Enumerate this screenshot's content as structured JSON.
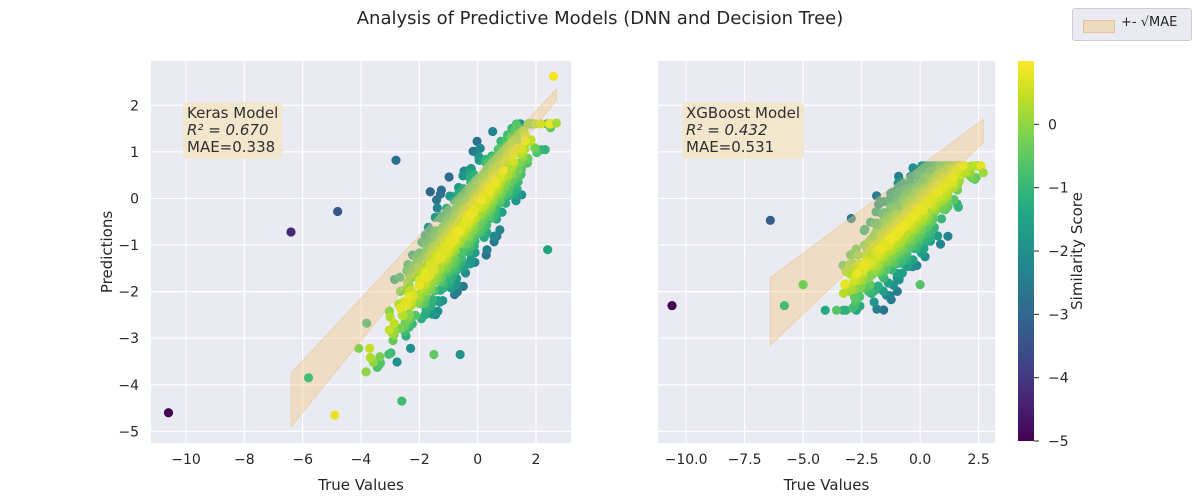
{
  "figure": {
    "title": "Analysis of Predictive Models (DNN and Decision Tree)",
    "legend_label": "+- √MAE",
    "colorbar_label": "Similarity Score",
    "colorbar_ticks": [
      0,
      -1,
      -2,
      -3,
      -4,
      -5
    ],
    "colormap": "viridis",
    "band_color": "#f5c882"
  },
  "panels": [
    {
      "model_label": "Keras Model",
      "r2_text": "R² = 0.670",
      "mae_text": "MAE=0.338",
      "xlabel": "True Values",
      "ylabel": "Predictions"
    },
    {
      "model_label": "XGBoost Model",
      "r2_text": "R² = 0.432",
      "mae_text": "MAE=0.531",
      "xlabel": "True Values",
      "ylabel": ""
    }
  ],
  "chart_data": [
    {
      "type": "scatter",
      "title": "Keras Model",
      "xlabel": "True Values",
      "ylabel": "Predictions",
      "xlim": [
        -11.2,
        3.2
      ],
      "ylim": [
        -5.25,
        2.95
      ],
      "xticks": [
        -10,
        -8,
        -6,
        -4,
        -2,
        0,
        2
      ],
      "yticks": [
        2,
        1,
        0,
        -1,
        -2,
        -3,
        -4,
        -5
      ],
      "grid": true,
      "band": {
        "x": [
          -6.4,
          2.7
        ],
        "lower": [
          -4.9,
          2.1
        ],
        "upper": [
          -3.75,
          2.35
        ],
        "label": "+- √MAE"
      },
      "outliers": [
        {
          "x": -10.6,
          "y": -4.6,
          "s": -5.0
        },
        {
          "x": -6.4,
          "y": -0.72,
          "s": -4.3
        },
        {
          "x": -4.8,
          "y": -0.28,
          "s": -3.3
        },
        {
          "x": -2.8,
          "y": 0.82,
          "s": -2.8
        },
        {
          "x": 2.6,
          "y": 2.62,
          "s": 0.9
        },
        {
          "x": -5.8,
          "y": -3.85,
          "s": -0.8
        },
        {
          "x": -4.9,
          "y": -4.65,
          "s": 0.8
        },
        {
          "x": -2.6,
          "y": -4.35,
          "s": -0.9
        },
        {
          "x": -1.5,
          "y": -3.35,
          "s": -0.5
        },
        {
          "x": -0.6,
          "y": -3.35,
          "s": -1.9
        },
        {
          "x": 2.4,
          "y": -1.1,
          "s": -1.5
        },
        {
          "x": 2.7,
          "y": 1.62,
          "s": 0.2
        }
      ],
      "cloud": {
        "n": 900,
        "x_range": [
          -5.0,
          2.5
        ],
        "x_mean": -0.5,
        "x_sd": 1.15,
        "slope": 0.85,
        "intercept": -0.15,
        "noise_sd": 0.48,
        "ymin": -4.8,
        "ymax": 1.6
      },
      "colorbar": {
        "label": "Similarity Score",
        "range": [
          -5,
          1
        ]
      }
    },
    {
      "type": "scatter",
      "title": "XGBoost Model",
      "xlabel": "True Values",
      "ylabel": "",
      "xlim": [
        -11.2,
        3.2
      ],
      "ylim": [
        -5.25,
        2.95
      ],
      "xticks": [
        -10.0,
        -7.5,
        -5.0,
        -2.5,
        0.0,
        2.5
      ],
      "xticklabels": [
        "−10.0",
        "−7.5",
        "−5.0",
        "−2.5",
        "0.0",
        "2.5"
      ],
      "yticks": [
        2,
        1,
        0,
        -1,
        -2,
        -3,
        -4,
        -5
      ],
      "grid": true,
      "band": {
        "x": [
          -6.4,
          2.7
        ],
        "lower": [
          -3.15,
          1.2
        ],
        "upper": [
          -1.7,
          1.7
        ],
        "label": "+- √MAE"
      },
      "outliers": [
        {
          "x": -10.6,
          "y": -2.3,
          "s": -5.0
        },
        {
          "x": -6.4,
          "y": -0.47,
          "s": -3.2
        },
        {
          "x": -5.8,
          "y": -2.3,
          "s": -0.8
        },
        {
          "x": -5.0,
          "y": -1.85,
          "s": -0.3
        },
        {
          "x": 0.0,
          "y": -1.85,
          "s": -0.6
        },
        {
          "x": 2.7,
          "y": 0.55,
          "s": 0.1
        }
      ],
      "cloud": {
        "n": 850,
        "x_range": [
          -5.0,
          2.6
        ],
        "x_mean": -0.5,
        "x_sd": 1.2,
        "slope": 0.5,
        "intercept": -0.25,
        "noise_sd": 0.45,
        "ymin": -2.4,
        "ymax": 0.7
      },
      "colorbar": {
        "label": "Similarity Score",
        "range": [
          -5,
          1
        ]
      }
    }
  ]
}
